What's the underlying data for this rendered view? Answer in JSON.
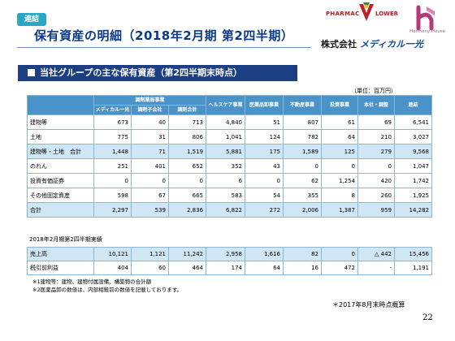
{
  "header": {
    "badge": "連結",
    "title": "保有資産の明細（2018年2月期 第2四半期）",
    "subtitle": "当社グループの主な保有資産（第2四半期末時点）",
    "unit": "（単位：百万円）"
  },
  "logos": {
    "pharmac": "PHARMAC",
    "lower": "LOWER",
    "harmony": "Harmony House",
    "company_prefix": "株式会社",
    "company_brand": "メディカル一光"
  },
  "table_headers": {
    "dispensing_group": "調剤薬局事業",
    "medical_ikko": "メディカル一光",
    "dispensing_sub": "調剤子会社",
    "dispensing_total": "調剤合計",
    "healthcare": "ヘルスケア事業",
    "pharma_wholesale": "医薬品卸事業",
    "real_estate": "不動産事業",
    "investment": "投資事業",
    "hq_adjust": "本社・調整",
    "consolidated": "連結"
  },
  "rows": [
    {
      "label": "建物等",
      "v": [
        "673",
        "40",
        "713",
        "4,840",
        "51",
        "807",
        "61",
        "69",
        "6,541"
      ],
      "shade": false
    },
    {
      "label": "土地",
      "v": [
        "775",
        "31",
        "806",
        "1,041",
        "124",
        "782",
        "64",
        "210",
        "3,027"
      ],
      "shade": false
    },
    {
      "label": "建物等・土地　合計",
      "v": [
        "1,448",
        "71",
        "1,519",
        "5,881",
        "175",
        "1,589",
        "125",
        "279",
        "9,568"
      ],
      "shade": true
    },
    {
      "label": "のれん",
      "v": [
        "251",
        "401",
        "652",
        "352",
        "43",
        "0",
        "0",
        "0",
        "1,047"
      ],
      "shade": false
    },
    {
      "label": "投資有価証券",
      "v": [
        "0",
        "0",
        "0",
        "6",
        "0",
        "62",
        "1,254",
        "420",
        "1,742"
      ],
      "shade": false
    },
    {
      "label": "その他固定資産",
      "v": [
        "598",
        "67",
        "665",
        "583",
        "54",
        "355",
        "8",
        "260",
        "1,925"
      ],
      "shade": false
    },
    {
      "label": "合計",
      "v": [
        "2,297",
        "539",
        "2,836",
        "6,822",
        "272",
        "2,006",
        "1,387",
        "959",
        "14,282"
      ],
      "shade": true
    }
  ],
  "results_title": "2018年2月期第2四半期実績",
  "results_rows": [
    {
      "label": "売上高",
      "v": [
        "10,121",
        "1,121",
        "11,242",
        "2,958",
        "1,616",
        "82",
        "0",
        "△ 442",
        "15,456"
      ],
      "shade": true
    },
    {
      "label": "税引前利益",
      "v": [
        "404",
        "60",
        "464",
        "174",
        "64",
        "16",
        "472",
        "-",
        "1,191"
      ],
      "shade": false
    }
  ],
  "footnotes": [
    "※1建物等：建物、建物付属設備、構築物の合計額",
    "※2医薬品卸の数値は、内部相殺前の数値を記載しております。"
  ],
  "time_note": "＊2017年8月末時点概算",
  "page_number": "22",
  "colors": {
    "badge": "#2aa7c4",
    "title": "#0b3a8a",
    "subtitle_bar": "#1b3f82",
    "table_header": "#4a93c9",
    "row_shade": "#cfe6f4"
  }
}
